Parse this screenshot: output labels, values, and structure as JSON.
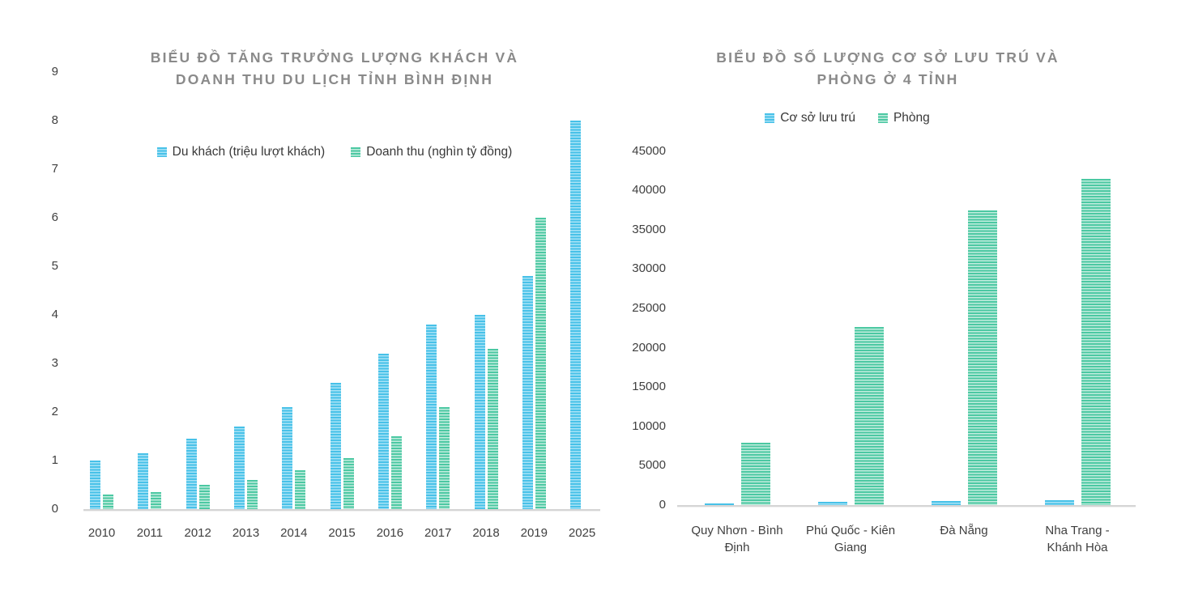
{
  "chart_data": [
    {
      "type": "bar",
      "title": "BIỂU ĐỒ TĂNG TRƯỞNG LƯỢNG KHÁCH VÀ DOANH THU DU LỊCH TỈNH BÌNH ĐỊNH",
      "title_lines": [
        "BIỂU ĐỒ TĂNG TRƯỞNG LƯỢNG KHÁCH VÀ",
        "DOANH THU DU LỊCH TỈNH BÌNH ĐỊNH"
      ],
      "categories": [
        "2010",
        "2011",
        "2012",
        "2013",
        "2014",
        "2015",
        "2016",
        "2017",
        "2018",
        "2019",
        "2025"
      ],
      "categories_display": [
        [
          "2010"
        ],
        [
          "2011"
        ],
        [
          "2012"
        ],
        [
          "2013"
        ],
        [
          "2014"
        ],
        [
          "2015"
        ],
        [
          "2016"
        ],
        [
          "2017"
        ],
        [
          "2018"
        ],
        [
          "2019"
        ],
        [
          "2025"
        ]
      ],
      "series": [
        {
          "name": "Du khách (triệu lượt khách)",
          "color": "#47c1e8",
          "color_light": "#a9e3f6",
          "values": [
            1.0,
            1.15,
            1.45,
            1.7,
            2.1,
            2.6,
            3.2,
            3.8,
            4.0,
            4.8,
            8.0
          ]
        },
        {
          "name": "Doanh thu (nghìn tỷ đồng)",
          "color": "#4bc8a2",
          "color_light": "#c3eddf",
          "values": [
            0.3,
            0.35,
            0.5,
            0.6,
            0.8,
            1.05,
            1.5,
            2.1,
            3.3,
            6.0,
            null
          ]
        }
      ],
      "xlabel": "",
      "ylabel": "",
      "ylim": [
        0,
        9
      ],
      "yticks": [
        0,
        1,
        2,
        3,
        4,
        5,
        6,
        7,
        8,
        9
      ],
      "grid": false,
      "legend_position": "top"
    },
    {
      "type": "bar",
      "title": "BIỂU ĐỒ SỐ LƯỢNG CƠ SỞ LƯU TRÚ VÀ PHÒNG Ở 4 TỈNH",
      "title_lines": [
        "BIỂU ĐỒ SỐ LƯỢNG CƠ SỞ LƯU TRÚ VÀ",
        "PHÒNG Ở 4 TỈNH"
      ],
      "categories": [
        "Quy Nhơn - Bình Định",
        "Phú Quốc - Kiên Giang",
        "Đà Nẵng",
        "Nha Trang - Khánh Hòa"
      ],
      "categories_display": [
        [
          "Quy Nhơn - Bình",
          "Định"
        ],
        [
          "Phú Quốc - Kiên",
          "Giang"
        ],
        [
          "Đà Nẵng"
        ],
        [
          "Nha Trang -",
          "Khánh Hòa"
        ]
      ],
      "series": [
        {
          "name": "Cơ sở lưu trú",
          "color": "#47c1e8",
          "color_light": "#a9e3f6",
          "values": [
            250,
            450,
            550,
            600
          ]
        },
        {
          "name": "Phòng",
          "color": "#4bc8a2",
          "color_light": "#c3eddf",
          "values": [
            7900,
            22600,
            37500,
            41500
          ]
        }
      ],
      "xlabel": "",
      "ylabel": "",
      "ylim": [
        0,
        45000
      ],
      "yticks": [
        0,
        5000,
        10000,
        15000,
        20000,
        25000,
        30000,
        35000,
        40000,
        45000
      ],
      "grid": false,
      "legend_position": "top"
    }
  ],
  "colors": {
    "title_text": "#8a8a8a",
    "axis_text": "#3f3f3f",
    "axis_line": "#d5d5d5"
  }
}
